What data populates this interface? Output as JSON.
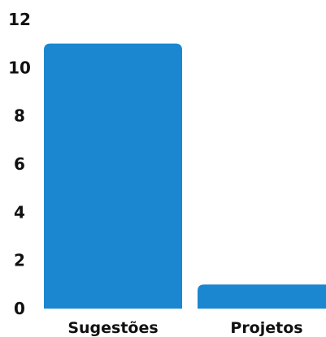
{
  "chart_data": {
    "type": "bar",
    "categories": [
      "Sugestões",
      "Projetos"
    ],
    "values": [
      11,
      1
    ],
    "ylim": [
      0,
      12
    ],
    "yticks": [
      "0",
      "2",
      "4",
      "6",
      "8",
      "10",
      "12"
    ],
    "grid": false,
    "bar_color": "#1a87d0"
  }
}
